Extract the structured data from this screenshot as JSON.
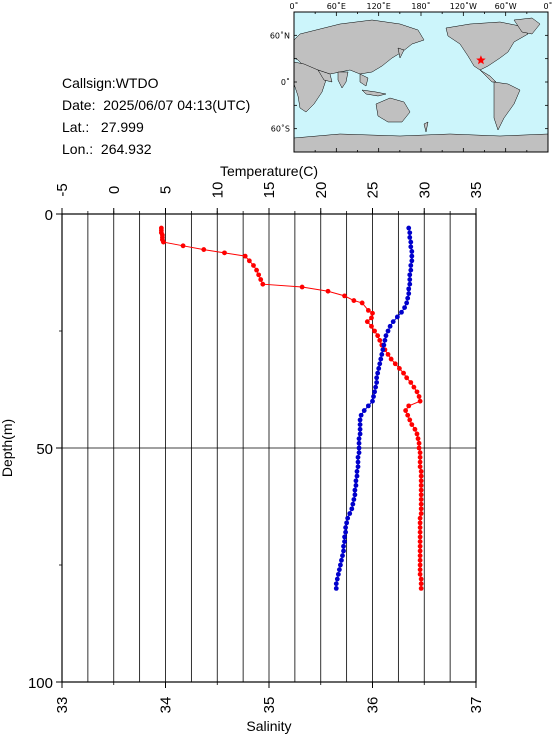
{
  "header": {
    "callsign": "Callsign:WTDO",
    "date": "Date:  2025/06/07 04:13(UTC)",
    "lat": "Lat.:   27.999",
    "lon": "Lon.:  264.932"
  },
  "map": {
    "top_labels": [
      "0˚",
      "60˚E",
      "120˚E",
      "180˚",
      "120˚W",
      "60˚W",
      "0˚"
    ],
    "left_labels": [
      "60˚N",
      "0˚",
      "60˚S"
    ],
    "ocean_color": "#ccf5fb",
    "land_color": "#c0c0c0",
    "marker": {
      "lat": 27.999,
      "lon": 264.932,
      "color": "#ff0000",
      "symbol": "star"
    }
  },
  "chart_data": {
    "type": "scatter",
    "title": "",
    "top_axis": {
      "label": "Temperature(C)",
      "range": [
        -5,
        35
      ],
      "ticks": [
        "-5",
        "0",
        "5",
        "10",
        "15",
        "20",
        "25",
        "30",
        "35"
      ]
    },
    "bottom_axis": {
      "label": "Salinity",
      "range": [
        33,
        37
      ],
      "ticks": [
        "33",
        "34",
        "35",
        "36",
        "37"
      ]
    },
    "y_axis": {
      "label": "Depth(m)",
      "range": [
        0,
        100
      ],
      "inverted": true,
      "ticks": [
        "0",
        "50",
        "100"
      ]
    },
    "grid": true,
    "series": [
      {
        "color": "#ff0000",
        "axis": "temperature",
        "points": [
          [
            4.6,
            3
          ],
          [
            4.6,
            3.5
          ],
          [
            4.6,
            4
          ],
          [
            4.7,
            4.5
          ],
          [
            4.7,
            5
          ],
          [
            4.7,
            5.5
          ],
          [
            4.8,
            6
          ],
          [
            6.7,
            6.8
          ],
          [
            8.7,
            7.6
          ],
          [
            10.7,
            8.3
          ],
          [
            12.7,
            9
          ],
          [
            13.1,
            10
          ],
          [
            13.5,
            11
          ],
          [
            13.8,
            12
          ],
          [
            14.0,
            13
          ],
          [
            14.2,
            14
          ],
          [
            14.4,
            15
          ],
          [
            18.2,
            15.6
          ],
          [
            20.7,
            16.5
          ],
          [
            22.3,
            17.5
          ],
          [
            23.2,
            18.5
          ],
          [
            24.0,
            19
          ],
          [
            24.6,
            20.6
          ],
          [
            25.0,
            21.2
          ],
          [
            24.9,
            22.2
          ],
          [
            24.5,
            23
          ],
          [
            24.9,
            24
          ],
          [
            25.2,
            25
          ],
          [
            25.5,
            26
          ],
          [
            25.7,
            27
          ],
          [
            25.9,
            28
          ],
          [
            26.2,
            29
          ],
          [
            26.5,
            30
          ],
          [
            26.8,
            31
          ],
          [
            27.2,
            32
          ],
          [
            27.6,
            33
          ],
          [
            28.0,
            34
          ],
          [
            28.3,
            35
          ],
          [
            28.7,
            36
          ],
          [
            29.0,
            37
          ],
          [
            29.3,
            38
          ],
          [
            29.5,
            39
          ],
          [
            29.6,
            40
          ],
          [
            28.5,
            41
          ],
          [
            28.2,
            42
          ],
          [
            28.4,
            43
          ],
          [
            28.6,
            44
          ],
          [
            28.8,
            45
          ],
          [
            29.1,
            46
          ],
          [
            29.3,
            47
          ],
          [
            29.4,
            48
          ],
          [
            29.5,
            49
          ],
          [
            29.5,
            50
          ],
          [
            29.6,
            51
          ],
          [
            29.6,
            52
          ],
          [
            29.6,
            53
          ],
          [
            29.6,
            54
          ],
          [
            29.7,
            55
          ],
          [
            29.7,
            56
          ],
          [
            29.7,
            57
          ],
          [
            29.7,
            58
          ],
          [
            29.7,
            59
          ],
          [
            29.7,
            60
          ],
          [
            29.7,
            61
          ],
          [
            29.7,
            62
          ],
          [
            29.7,
            63
          ],
          [
            29.7,
            64
          ],
          [
            29.6,
            65
          ],
          [
            29.6,
            66
          ],
          [
            29.6,
            67
          ],
          [
            29.6,
            68
          ],
          [
            29.6,
            69
          ],
          [
            29.6,
            70
          ],
          [
            29.6,
            71
          ],
          [
            29.6,
            72
          ],
          [
            29.6,
            73
          ],
          [
            29.6,
            74
          ],
          [
            29.6,
            75
          ],
          [
            29.6,
            76
          ],
          [
            29.6,
            77
          ],
          [
            29.7,
            78
          ],
          [
            29.7,
            79
          ],
          [
            29.7,
            80
          ]
        ]
      },
      {
        "color": "#0000cc",
        "axis": "salinity",
        "points": [
          [
            36.35,
            3
          ],
          [
            36.36,
            4
          ],
          [
            36.36,
            5
          ],
          [
            36.37,
            6
          ],
          [
            36.37,
            7
          ],
          [
            36.38,
            8
          ],
          [
            36.38,
            9
          ],
          [
            36.38,
            10
          ],
          [
            36.37,
            11
          ],
          [
            36.37,
            12
          ],
          [
            36.36,
            13
          ],
          [
            36.36,
            14
          ],
          [
            36.36,
            15
          ],
          [
            36.35,
            16
          ],
          [
            36.35,
            17
          ],
          [
            36.34,
            18
          ],
          [
            36.33,
            19
          ],
          [
            36.31,
            20
          ],
          [
            36.28,
            21
          ],
          [
            36.24,
            22
          ],
          [
            36.2,
            23
          ],
          [
            36.17,
            24
          ],
          [
            36.15,
            25
          ],
          [
            36.13,
            26
          ],
          [
            36.12,
            27
          ],
          [
            36.11,
            28
          ],
          [
            36.1,
            29
          ],
          [
            36.09,
            30
          ],
          [
            36.08,
            31
          ],
          [
            36.07,
            32
          ],
          [
            36.06,
            33
          ],
          [
            36.05,
            34
          ],
          [
            36.04,
            35
          ],
          [
            36.04,
            36
          ],
          [
            36.03,
            37
          ],
          [
            36.02,
            38
          ],
          [
            36.01,
            39
          ],
          [
            36.0,
            40
          ],
          [
            35.96,
            41
          ],
          [
            35.92,
            42
          ],
          [
            35.89,
            43
          ],
          [
            35.88,
            44
          ],
          [
            35.88,
            45
          ],
          [
            35.88,
            46
          ],
          [
            35.88,
            47
          ],
          [
            35.87,
            48
          ],
          [
            35.87,
            49
          ],
          [
            35.87,
            50
          ],
          [
            35.87,
            51
          ],
          [
            35.86,
            52
          ],
          [
            35.86,
            53
          ],
          [
            35.86,
            54
          ],
          [
            35.85,
            55
          ],
          [
            35.85,
            56
          ],
          [
            35.84,
            57
          ],
          [
            35.84,
            58
          ],
          [
            35.83,
            59
          ],
          [
            35.83,
            60
          ],
          [
            35.82,
            61
          ],
          [
            35.81,
            62
          ],
          [
            35.8,
            63
          ],
          [
            35.78,
            64
          ],
          [
            35.76,
            65
          ],
          [
            35.75,
            66
          ],
          [
            35.74,
            67
          ],
          [
            35.74,
            68
          ],
          [
            35.73,
            69
          ],
          [
            35.73,
            70
          ],
          [
            35.72,
            71
          ],
          [
            35.72,
            72
          ],
          [
            35.71,
            73
          ],
          [
            35.7,
            74
          ],
          [
            35.69,
            75
          ],
          [
            35.68,
            76
          ],
          [
            35.67,
            77
          ],
          [
            35.66,
            78
          ],
          [
            35.65,
            79
          ],
          [
            35.65,
            80
          ]
        ]
      }
    ]
  }
}
